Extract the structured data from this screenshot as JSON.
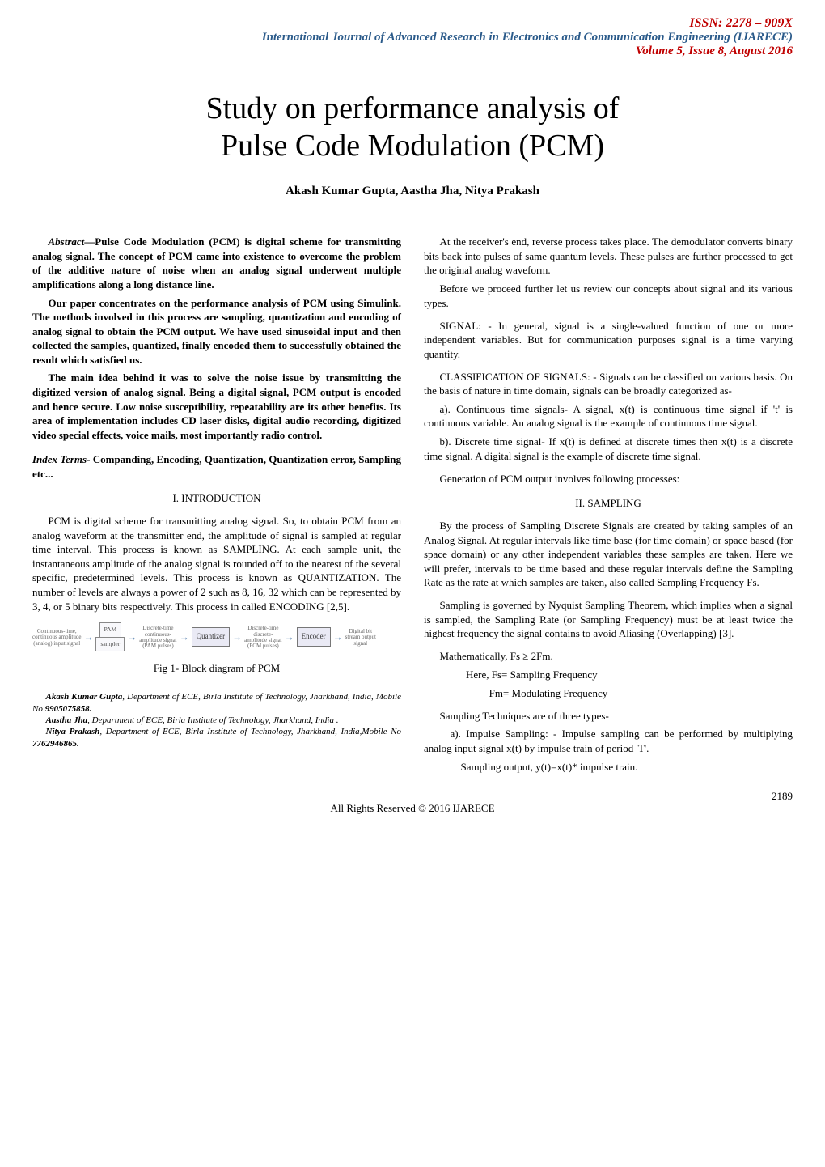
{
  "header": {
    "issn": "ISSN: 2278 – 909X",
    "journal": "International Journal of Advanced Research in Electronics and Communication Engineering (IJARECE)",
    "volume": "Volume 5, Issue 8, August 2016"
  },
  "title": {
    "line1": "Study on performance analysis of",
    "line2": "Pulse Code Modulation (PCM)"
  },
  "authors": "Akash Kumar Gupta, Aastha Jha, Nitya Prakash",
  "abstract": {
    "label": "Abstract",
    "dash": "—",
    "p1": "Pulse Code Modulation (PCM) is digital scheme for transmitting analog signal. The concept of PCM came into existence to overcome the problem of the additive nature of noise when an analog signal underwent multiple amplifications along a long distance line.",
    "p2": "Our paper concentrates on the performance analysis of PCM using Simulink. The methods involved in this process are sampling, quantization and encoding of analog signal to obtain the PCM output. We have used sinusoidal input and then collected the samples, quantized, finally encoded them to successfully obtained the result which satisfied us.",
    "p3": "The main idea behind it was to solve the noise issue by transmitting the digitized version of analog signal. Being a digital signal, PCM output is encoded and hence secure. Low noise susceptibility, repeatability are its other benefits. Its area of implementation includes CD laser disks, digital audio recording, digitized video special effects, voice mails, most importantly radio control."
  },
  "index_terms": {
    "label": "Index Terms",
    "text": "- Companding, Encoding, Quantization, Quantization error, Sampling etc..."
  },
  "sections": {
    "intro_heading": "I. INTRODUCTION",
    "intro_p1": "PCM is digital scheme for transmitting analog signal. So, to obtain PCM from an analog waveform at the transmitter end, the amplitude of signal is sampled at regular time interval. This process is known as SAMPLING. At each sample unit, the instantaneous amplitude of the analog signal is rounded off to the nearest of the several specific, predetermined levels. This process is known as QUANTIZATION. The number of levels are always a power of 2 such as 8, 16, 32 which can be represented by 3, 4, or 5 binary bits respectively. This process in called ENCODING [2,5].",
    "sampling_heading": "II.   SAMPLING"
  },
  "diagram": {
    "input_label": "Continuous-time,\ncontinuous amplitude\n(analog) input signal",
    "sampler_top": "PAM",
    "sampler": "sampler",
    "stage1_label": "Discrete-time\ncontinuous-\namplitude signal\n(PAM pulses)",
    "quantizer": "Quantizer",
    "stage2_label": "Discrete-time\ndiscrete-\namplitude signal\n(PCM pulses)",
    "encoder": "Encoder",
    "output_label": "Digital bit\nstream output\nsignal",
    "caption": "Fig 1- Block diagram of PCM"
  },
  "affiliations": {
    "a1_name": "Akash Kumar Gupta",
    "a1_rest": ", Department of ECE, Birla Institute of Technology, Jharkhand, India, Mobile No ",
    "a1_phone": "9905075858.",
    "a2_name": "Aastha Jha",
    "a2_rest": ", Department of ECE, Birla Institute of Technology, Jharkhand, India .",
    "a3_name": "Nitya Prakash",
    "a3_rest": ", Department of ECE, Birla Institute of Technology, Jharkhand, India,Mobile No ",
    "a3_phone": "7762946865."
  },
  "right_col": {
    "p1": "At the receiver's end, reverse process takes place. The demodulator converts binary bits back into pulses of same quantum levels. These pulses are further processed to get the original analog waveform.",
    "p2": "Before we proceed further let us review our concepts about signal and its various types.",
    "p3": "SIGNAL: - In general, signal is a single-valued function of one or more independent variables. But for communication purposes signal is a time varying quantity.",
    "p4": "CLASSIFICATION OF SIGNALS: - Signals can be classified on various basis. On the basis of nature in time domain, signals can be broadly categorized as-",
    "p5": "a). Continuous time signals- A signal, x(t) is continuous time signal if 't' is continuous variable. An analog signal is the example of continuous time signal.",
    "p6": "b). Discrete time signal- If x(t) is defined at discrete times then x(t) is a discrete time signal. A digital signal is the example of discrete time signal.",
    "p7": "Generation of PCM output involves following processes:",
    "samp_p1": "By the process of Sampling Discrete Signals are created by taking samples of an Analog Signal. At regular intervals like time base (for time domain) or space based (for space domain) or any other independent variables these samples are taken. Here we will prefer, intervals to be time based and these regular intervals define the Sampling Rate as the rate at which samples are taken, also called Sampling Frequency Fs.",
    "samp_p2": "Sampling is governed by Nyquist Sampling Theorem, which implies when a signal is sampled, the Sampling Rate (or Sampling Frequency) must be at least twice the highest frequency the signal contains to avoid Aliasing (Overlapping) [3].",
    "math1": "Mathematically, Fs ≥ 2Fm.",
    "math2": "Here, Fs= Sampling Frequency",
    "math3": "Fm= Modulating Frequency",
    "tech_head": "Sampling Techniques are of three types-",
    "tech_a": "a). Impulse Sampling: -  Impulse sampling can be performed by multiplying analog input signal x(t) by impulse train of period 'T'.",
    "tech_a2": "Sampling output, y(t)=x(t)* impulse train."
  },
  "footer": {
    "copyright": "All Rights Reserved © 2016 IJARECE",
    "page": "2189"
  },
  "colors": {
    "issn": "#c00000",
    "journal": "#2a5a8a",
    "text": "#000000",
    "background": "#ffffff"
  }
}
